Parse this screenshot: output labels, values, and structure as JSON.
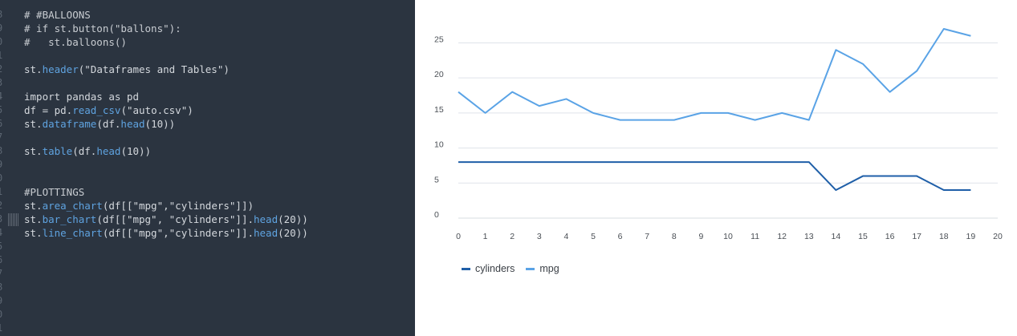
{
  "editor": {
    "line_numbers": [
      "8",
      "9",
      "0",
      "1",
      "2",
      "3",
      "4",
      "5",
      "6",
      "7",
      "8",
      "9",
      "0",
      "1",
      "2",
      "3",
      "4",
      "5",
      "6",
      "7",
      "8",
      "9",
      "0",
      "1",
      "2"
    ],
    "lines": [
      [
        {
          "t": "cm",
          "v": "# #BALLOONS"
        }
      ],
      [
        {
          "t": "cm",
          "v": "# if st.button(\"ballons\"):"
        }
      ],
      [
        {
          "t": "cm",
          "v": "#   st.balloons()"
        }
      ],
      [],
      [
        {
          "t": "kw",
          "v": "st."
        },
        {
          "t": "fn",
          "v": "header"
        },
        {
          "t": "kw",
          "v": "("
        },
        {
          "t": "str",
          "v": "\"Dataframes and Tables\""
        },
        {
          "t": "kw",
          "v": ")"
        }
      ],
      [],
      [
        {
          "t": "kw",
          "v": "import pandas as pd"
        }
      ],
      [
        {
          "t": "kw",
          "v": "df = pd."
        },
        {
          "t": "fn",
          "v": "read_csv"
        },
        {
          "t": "kw",
          "v": "("
        },
        {
          "t": "str",
          "v": "\"auto.csv\""
        },
        {
          "t": "kw",
          "v": ")"
        }
      ],
      [
        {
          "t": "kw",
          "v": "st."
        },
        {
          "t": "fn",
          "v": "dataframe"
        },
        {
          "t": "kw",
          "v": "(df."
        },
        {
          "t": "fn",
          "v": "head"
        },
        {
          "t": "kw",
          "v": "("
        },
        {
          "t": "num",
          "v": "10"
        },
        {
          "t": "kw",
          "v": "))"
        }
      ],
      [],
      [
        {
          "t": "kw",
          "v": "st."
        },
        {
          "t": "fn",
          "v": "table"
        },
        {
          "t": "kw",
          "v": "(df."
        },
        {
          "t": "fn",
          "v": "head"
        },
        {
          "t": "kw",
          "v": "("
        },
        {
          "t": "num",
          "v": "10"
        },
        {
          "t": "kw",
          "v": "))"
        }
      ],
      [],
      [],
      [
        {
          "t": "cm",
          "v": "#PLOTTINGS"
        }
      ],
      [
        {
          "t": "kw",
          "v": "st."
        },
        {
          "t": "fn",
          "v": "area_chart"
        },
        {
          "t": "kw",
          "v": "(df[["
        },
        {
          "t": "str",
          "v": "\"mpg\",\"cylinders\""
        },
        {
          "t": "kw",
          "v": "]])"
        }
      ],
      [
        {
          "t": "kw",
          "v": "st."
        },
        {
          "t": "fn",
          "v": "bar_chart"
        },
        {
          "t": "kw",
          "v": "(df[["
        },
        {
          "t": "str",
          "v": "\"mpg\", \"cylinders\""
        },
        {
          "t": "kw",
          "v": "]]."
        },
        {
          "t": "fn",
          "v": "head"
        },
        {
          "t": "kw",
          "v": "("
        },
        {
          "t": "num",
          "v": "20"
        },
        {
          "t": "kw",
          "v": "))"
        }
      ],
      [
        {
          "t": "kw",
          "v": "st."
        },
        {
          "t": "fn",
          "v": "line_chart"
        },
        {
          "t": "kw",
          "v": "(df[["
        },
        {
          "t": "str",
          "v": "\"mpg\",\"cylinders\""
        },
        {
          "t": "kw",
          "v": "]]."
        },
        {
          "t": "fn",
          "v": "head"
        },
        {
          "t": "kw",
          "v": "("
        },
        {
          "t": "num",
          "v": "20"
        },
        {
          "t": "kw",
          "v": "))"
        }
      ]
    ]
  },
  "chart_data": {
    "type": "line",
    "x": [
      0,
      1,
      2,
      3,
      4,
      5,
      6,
      7,
      8,
      9,
      10,
      11,
      12,
      13,
      14,
      15,
      16,
      17,
      18,
      19
    ],
    "x_ticks": [
      "0",
      "1",
      "2",
      "3",
      "4",
      "5",
      "6",
      "7",
      "8",
      "9",
      "10",
      "11",
      "12",
      "13",
      "14",
      "15",
      "16",
      "17",
      "18",
      "19",
      "20"
    ],
    "y_ticks": [
      "0",
      "5",
      "10",
      "15",
      "20",
      "25"
    ],
    "ylim": [
      0,
      27
    ],
    "xlim": [
      0,
      20
    ],
    "grid": "horizontal",
    "legend_position": "bottom-left",
    "series": [
      {
        "name": "cylinders",
        "color": "#1f5fa8",
        "values": [
          8,
          8,
          8,
          8,
          8,
          8,
          8,
          8,
          8,
          8,
          8,
          8,
          8,
          8,
          4,
          6,
          6,
          6,
          4,
          4
        ]
      },
      {
        "name": "mpg",
        "color": "#5aa3e6",
        "values": [
          18,
          15,
          18,
          16,
          17,
          15,
          14,
          14,
          14,
          15,
          15,
          14,
          15,
          14,
          24,
          22,
          18,
          21,
          27,
          26
        ]
      }
    ]
  }
}
